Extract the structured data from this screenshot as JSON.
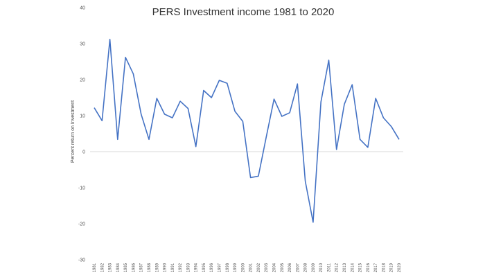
{
  "chart_data": {
    "type": "line",
    "title": "PERS Investment income 1981 to 2020",
    "xlabel": "",
    "ylabel": "Percent return on Investment",
    "ylim": [
      -30,
      40
    ],
    "yticks": [
      -30,
      -20,
      -10,
      0,
      10,
      20,
      30,
      40
    ],
    "grid": false,
    "legend": "none",
    "line_color": "#4472C4",
    "x": [
      "1981",
      "1982",
      "1983",
      "1984",
      "1985",
      "1986",
      "1987",
      "1988",
      "1989",
      "1990",
      "1991",
      "1992",
      "1993",
      "1994",
      "1995",
      "1996",
      "1997",
      "1998",
      "1999",
      "2000",
      "2001",
      "2002",
      "2003",
      "2004",
      "2005",
      "2006",
      "2007",
      "2008",
      "2009",
      "2010",
      "2011",
      "2012",
      "2013",
      "2014",
      "2015",
      "2016",
      "2017",
      "2018",
      "2019",
      "2020"
    ],
    "series": [
      {
        "values": [
          12.2,
          8.6,
          31.2,
          3.4,
          26.2,
          21.6,
          10.4,
          3.4,
          14.8,
          10.4,
          9.4,
          14.0,
          12.0,
          1.4,
          17.0,
          15.0,
          19.8,
          19.0,
          11.2,
          8.4,
          -7.2,
          -6.8,
          4.0,
          14.6,
          9.8,
          10.8,
          18.8,
          -8.2,
          -19.6,
          13.8,
          25.4,
          0.6,
          13.2,
          18.6,
          3.4,
          1.2,
          14.8,
          9.4,
          7.0,
          3.4
        ]
      }
    ]
  }
}
